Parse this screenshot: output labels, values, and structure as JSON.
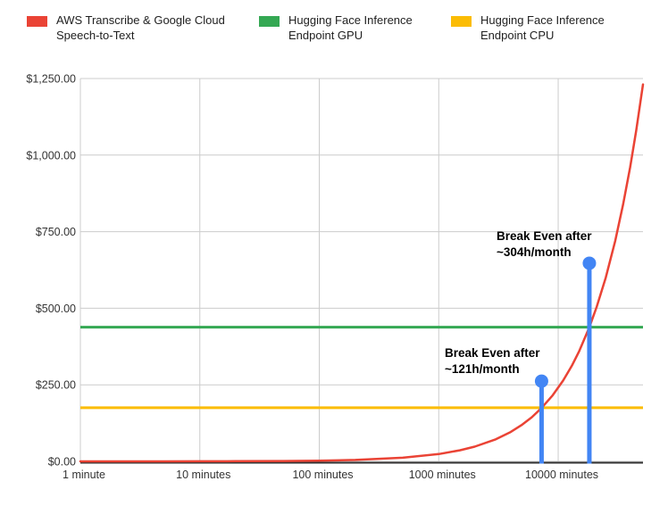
{
  "legend": {
    "items": [
      {
        "label": "AWS Transcribe & Google Cloud Speech-to-Text",
        "color": "#EA4335"
      },
      {
        "label": "Hugging Face Inference Endpoint GPU",
        "color": "#34A853"
      },
      {
        "label": "Hugging Face Inference Endpoint CPU",
        "color": "#FBBC04"
      }
    ]
  },
  "chart_data": {
    "type": "line",
    "x_scale": "log",
    "x_range": [
      1,
      51286
    ],
    "y_range": [
      0,
      1250
    ],
    "grid": true,
    "grid_color": "#cccccc",
    "axis_color": "#333333",
    "legend_position": "top",
    "x_ticks": [
      {
        "value": 1,
        "label": "1 minute"
      },
      {
        "value": 10,
        "label": "10 minutes"
      },
      {
        "value": 100,
        "label": "100 minutes"
      },
      {
        "value": 1000,
        "label": "1000 minutes"
      },
      {
        "value": 10000,
        "label": "10000 minutes"
      }
    ],
    "y_ticks": [
      {
        "value": 0,
        "label": "$0.00"
      },
      {
        "value": 250,
        "label": "$250.00"
      },
      {
        "value": 500,
        "label": "$500.00"
      },
      {
        "value": 750,
        "label": "$750.00"
      },
      {
        "value": 1000,
        "label": "$1,000.00"
      },
      {
        "value": 1250,
        "label": "$1,250.00"
      }
    ],
    "series": [
      {
        "name": "AWS Transcribe & Google Cloud Speech-to-Text",
        "type": "curve",
        "color": "#EA4335",
        "rate_dollars_per_minute": 0.024,
        "points_minutes": [
          1,
          2,
          5,
          10,
          20,
          50,
          100,
          200,
          500,
          1000,
          1500,
          2000,
          3000,
          4000,
          5000,
          6000,
          7260,
          9000,
          11000,
          13000,
          15000,
          18240,
          21000,
          25000,
          30000,
          35000,
          40000,
          45000,
          51286
        ],
        "points_cost": [
          0.02,
          0.05,
          0.12,
          0.24,
          0.48,
          1.2,
          2.4,
          4.8,
          12,
          24,
          36,
          48,
          72,
          96,
          120,
          144,
          174.24,
          216,
          264,
          312,
          360,
          437.76,
          504,
          600,
          720,
          840,
          960,
          1080,
          1230.86
        ]
      },
      {
        "name": "Hugging Face Inference Endpoint GPU",
        "type": "hline",
        "color": "#34A853",
        "cost": 438.0,
        "data_name": "gpu-cost-line"
      },
      {
        "name": "Hugging Face Inference Endpoint CPU",
        "type": "hline",
        "color": "#FBBC04",
        "cost": 175.2,
        "data_name": "cpu-cost-line"
      }
    ],
    "annotations": [
      {
        "label_lines": [
          "Break Even after",
          "~121h/month"
        ],
        "at_minutes": 7260,
        "dot_cost": 262,
        "color": "#4285F4"
      },
      {
        "label_lines": [
          "Break Even after",
          "~304h/month"
        ],
        "at_minutes": 18240,
        "dot_cost": 647,
        "color": "#4285F4"
      }
    ]
  }
}
